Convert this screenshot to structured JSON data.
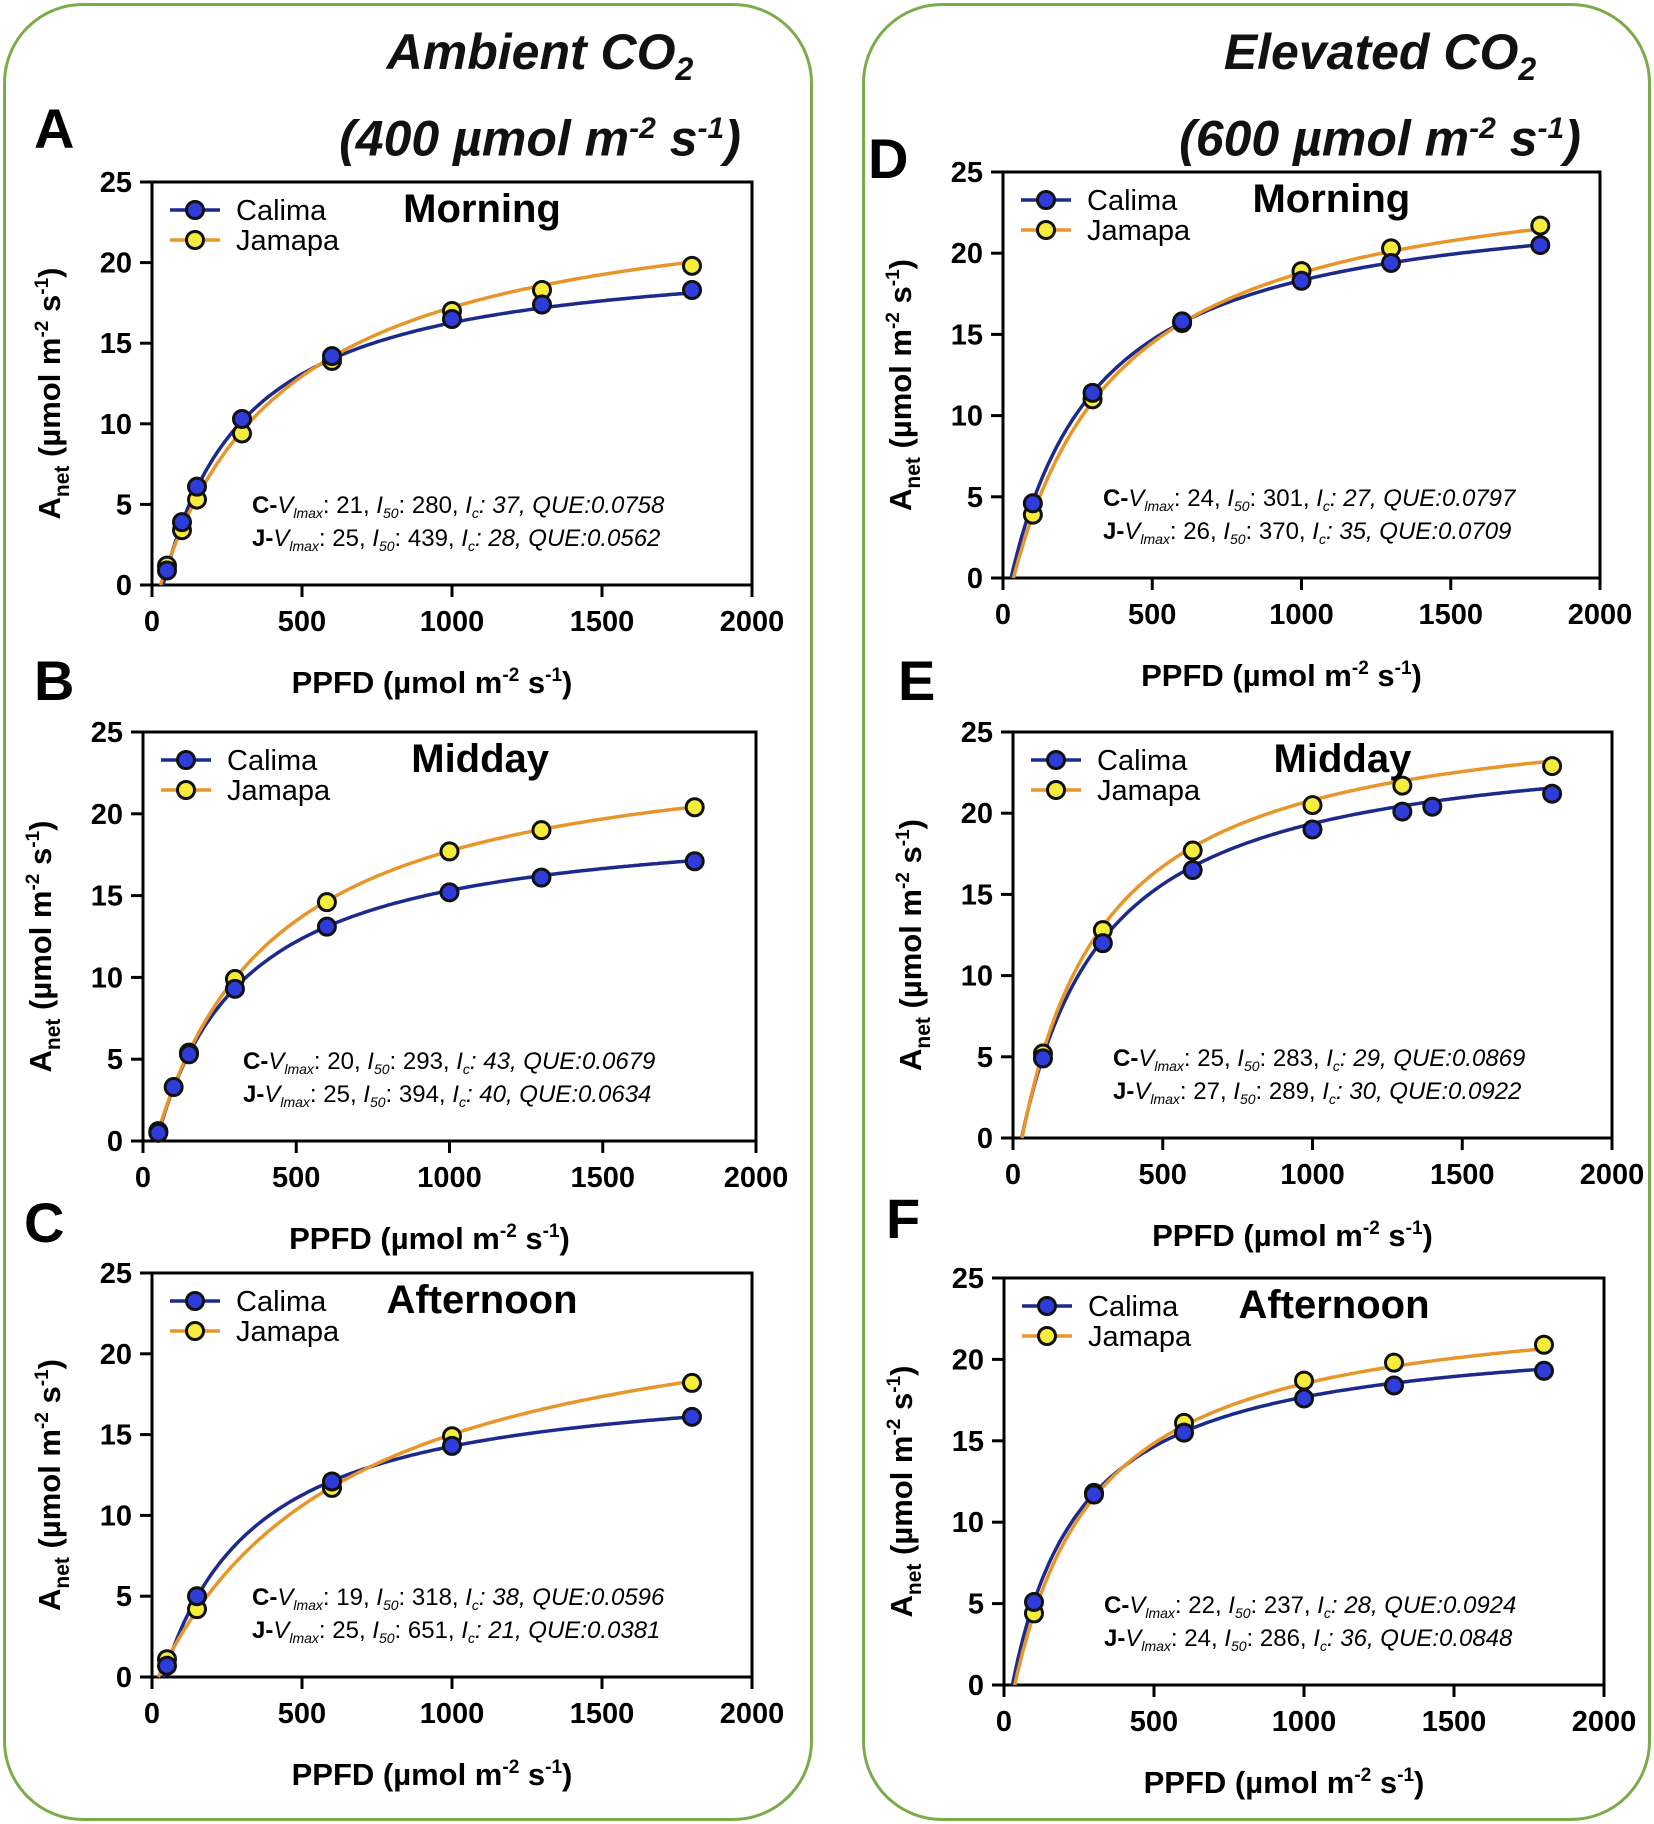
{
  "groups": [
    {
      "label": "Ambient CO",
      "sub": "2",
      "conc": "(400 µmol m",
      "conc_exp1": "-2",
      "conc_mid": " s",
      "conc_exp2": "-1",
      "conc_end": ")"
    },
    {
      "label": "Elevated CO",
      "sub": "2",
      "conc": "(600 µmol m",
      "conc_exp1": "-2",
      "conc_mid": " s",
      "conc_exp2": "-1",
      "conc_end": ")"
    }
  ],
  "colors": {
    "calima_fill": "#2e3dd9",
    "calima_line": "#1c2a8c",
    "jamapa_fill": "#f6ec3c",
    "jamapa_line": "#e8962a",
    "border": "#7bab4a"
  },
  "axis_text": {
    "xlabel": "PPFD (µmol m",
    "xlabel_exp1": "-2",
    "xlabel_mid": " s",
    "xlabel_exp2": "-1",
    "xlabel_end": ")",
    "ylabel_main": "A",
    "ylabel_sub": "net",
    "ylabel_rest": " (µmol m",
    "ylabel_exp1": "-2",
    "ylabel_mid": " s",
    "ylabel_exp2": "-1",
    "ylabel_end": ")"
  },
  "chart_data": [
    {
      "panel": "A",
      "type": "scatter",
      "title": "Morning",
      "xlim": [
        0,
        2000
      ],
      "ylim": [
        0,
        25
      ],
      "xticks": [
        "0",
        "500",
        "1000",
        "1500",
        "2000"
      ],
      "yticks": [
        "0",
        "5",
        "10",
        "15",
        "20",
        "25"
      ],
      "legend": [
        "Calima",
        "Jamapa"
      ],
      "series": [
        {
          "name": "Calima",
          "x": [
            50,
            100,
            150,
            300,
            600,
            1000,
            1300,
            1800
          ],
          "y": [
            0.9,
            3.9,
            6.1,
            10.3,
            14.2,
            16.5,
            17.4,
            18.3
          ],
          "fit": {
            "vmax": 21,
            "i50": 280,
            "ic": 37
          }
        },
        {
          "name": "Jamapa",
          "x": [
            50,
            100,
            150,
            300,
            600,
            1000,
            1300,
            1800
          ],
          "y": [
            1.2,
            3.4,
            5.3,
            9.4,
            13.9,
            17.0,
            18.3,
            19.8
          ],
          "fit": {
            "vmax": 25,
            "i50": 439,
            "ic": 28
          }
        }
      ],
      "annotations": [
        {
          "prefix": "C-",
          "v": "V",
          "vsub": "lmax",
          "v_val": ": 21, ",
          "i": "I",
          "isub": "50",
          "i_val": ": 280, ",
          "c": "I",
          "csub": "c",
          "rest": ": 37, QUE:0.0758"
        },
        {
          "prefix": "J-",
          "v": "V",
          "vsub": "lmax",
          "v_val": ": 25, ",
          "i": "I",
          "isub": "50",
          "i_val": ": 439, ",
          "c": "I",
          "csub": "c",
          "rest": ": 28, QUE:0.0562"
        }
      ]
    },
    {
      "panel": "B",
      "type": "scatter",
      "title": "Midday",
      "xlim": [
        0,
        2000
      ],
      "ylim": [
        0,
        25
      ],
      "xticks": [
        "0",
        "500",
        "1000",
        "1500",
        "2000"
      ],
      "yticks": [
        "0",
        "5",
        "10",
        "15",
        "20",
        "25"
      ],
      "legend": [
        "Calima",
        "Jamapa"
      ],
      "series": [
        {
          "name": "Calima",
          "x": [
            50,
            100,
            150,
            300,
            600,
            1000,
            1300,
            1800
          ],
          "y": [
            0.5,
            3.3,
            5.3,
            9.3,
            13.1,
            15.2,
            16.1,
            17.1
          ],
          "fit": {
            "vmax": 20,
            "i50": 293,
            "ic": 43
          }
        },
        {
          "name": "Jamapa",
          "x": [
            50,
            150,
            300,
            600,
            1000,
            1300,
            1800
          ],
          "y": [
            0.6,
            5.4,
            9.9,
            14.6,
            17.7,
            19.0,
            20.4
          ],
          "fit": {
            "vmax": 25,
            "i50": 394,
            "ic": 40
          }
        }
      ],
      "annotations": [
        {
          "prefix": "C-",
          "v": "V",
          "vsub": "lmax",
          "v_val": ": 20, ",
          "i": "I",
          "isub": "50",
          "i_val": ": 293, ",
          "c": "I",
          "csub": "c",
          "rest": ": 43, QUE:0.0679"
        },
        {
          "prefix": "J-",
          "v": "V",
          "vsub": "lmax",
          "v_val": ": 25, ",
          "i": "I",
          "isub": "50",
          "i_val": ": 394, ",
          "c": "I",
          "csub": "c",
          "rest": ": 40, QUE:0.0634"
        }
      ]
    },
    {
      "panel": "C",
      "type": "scatter",
      "title": "Afternoon",
      "xlim": [
        0,
        2000
      ],
      "ylim": [
        0,
        25
      ],
      "xticks": [
        "0",
        "500",
        "1000",
        "1500",
        "2000"
      ],
      "yticks": [
        "0",
        "5",
        "10",
        "15",
        "20",
        "25"
      ],
      "legend": [
        "Calima",
        "Jamapa"
      ],
      "series": [
        {
          "name": "Calima",
          "x": [
            50,
            150,
            600,
            1000,
            1800
          ],
          "y": [
            0.7,
            5.0,
            12.1,
            14.3,
            16.1
          ],
          "fit": {
            "vmax": 19,
            "i50": 318,
            "ic": 38
          }
        },
        {
          "name": "Jamapa",
          "x": [
            50,
            150,
            600,
            1000,
            1800
          ],
          "y": [
            1.1,
            4.2,
            11.7,
            14.9,
            18.2
          ],
          "fit": {
            "vmax": 25,
            "i50": 651,
            "ic": 21
          }
        }
      ],
      "annotations": [
        {
          "prefix": "C-",
          "v": "V",
          "vsub": "lmax",
          "v_val": ": 19, ",
          "i": "I",
          "isub": "50",
          "i_val": ": 318, ",
          "c": "I",
          "csub": "c",
          "rest": ": 38, QUE:0.0596"
        },
        {
          "prefix": "J-",
          "v": "V",
          "vsub": "lmax",
          "v_val": ": 25, ",
          "i": "I",
          "isub": "50",
          "i_val": ": 651, ",
          "c": "I",
          "csub": "c",
          "rest": ": 21, QUE:0.0381"
        }
      ]
    },
    {
      "panel": "D",
      "type": "scatter",
      "title": "Morning",
      "xlim": [
        0,
        2000
      ],
      "ylim": [
        0,
        25
      ],
      "xticks": [
        "0",
        "500",
        "1000",
        "1500",
        "2000"
      ],
      "yticks": [
        "0",
        "5",
        "10",
        "15",
        "20",
        "25"
      ],
      "legend": [
        "Calima",
        "Jamapa"
      ],
      "series": [
        {
          "name": "Calima",
          "x": [
            100,
            300,
            600,
            1000,
            1300,
            1800
          ],
          "y": [
            4.6,
            11.4,
            15.8,
            18.3,
            19.4,
            20.5
          ],
          "fit": {
            "vmax": 24,
            "i50": 301,
            "ic": 27
          }
        },
        {
          "name": "Jamapa",
          "x": [
            100,
            300,
            600,
            1000,
            1300,
            1800
          ],
          "y": [
            3.9,
            11.0,
            15.7,
            18.9,
            20.3,
            21.7
          ],
          "fit": {
            "vmax": 26,
            "i50": 370,
            "ic": 35
          }
        }
      ],
      "annotations": [
        {
          "prefix": "C-",
          "v": "V",
          "vsub": "lmax",
          "v_val": ": 24, ",
          "i": "I",
          "isub": "50",
          "i_val": ": 301, ",
          "c": "I",
          "csub": "c",
          "rest": ": 27, QUE:0.0797"
        },
        {
          "prefix": "J-",
          "v": "V",
          "vsub": "lmax",
          "v_val": ": 26, ",
          "i": "I",
          "isub": "50",
          "i_val": ": 370, ",
          "c": "I",
          "csub": "c",
          "rest": ": 35, QUE:0.0709"
        }
      ]
    },
    {
      "panel": "E",
      "type": "scatter",
      "title": "Midday",
      "xlim": [
        0,
        2000
      ],
      "ylim": [
        0,
        25
      ],
      "xticks": [
        "0",
        "500",
        "1000",
        "1500",
        "2000"
      ],
      "yticks": [
        "0",
        "5",
        "10",
        "15",
        "20",
        "25"
      ],
      "legend": [
        "Calima",
        "Jamapa"
      ],
      "series": [
        {
          "name": "Calima",
          "x": [
            100,
            300,
            600,
            1000,
            1300,
            1400,
            1800
          ],
          "y": [
            4.9,
            12.0,
            16.5,
            19.0,
            20.1,
            20.4,
            21.2
          ],
          "fit": {
            "vmax": 25,
            "i50": 283,
            "ic": 29
          }
        },
        {
          "name": "Jamapa",
          "x": [
            100,
            300,
            600,
            1000,
            1300,
            1800
          ],
          "y": [
            5.2,
            12.8,
            17.7,
            20.5,
            21.7,
            22.9
          ],
          "fit": {
            "vmax": 27,
            "i50": 289,
            "ic": 30
          }
        }
      ],
      "annotations": [
        {
          "prefix": "C-",
          "v": "V",
          "vsub": "lmax",
          "v_val": ": 25, ",
          "i": "I",
          "isub": "50",
          "i_val": ": 283, ",
          "c": "I",
          "csub": "c",
          "rest": ": 29, QUE:0.0869"
        },
        {
          "prefix": "J-",
          "v": "V",
          "vsub": "lmax",
          "v_val": ": 27, ",
          "i": "I",
          "isub": "50",
          "i_val": ": 289, ",
          "c": "I",
          "csub": "c",
          "rest": ": 30, QUE:0.0922"
        }
      ]
    },
    {
      "panel": "F",
      "type": "scatter",
      "title": "Afternoon",
      "xlim": [
        0,
        2000
      ],
      "ylim": [
        0,
        25
      ],
      "xticks": [
        "0",
        "500",
        "1000",
        "1500",
        "2000"
      ],
      "yticks": [
        "0",
        "5",
        "10",
        "15",
        "20",
        "25"
      ],
      "legend": [
        "Calima",
        "Jamapa"
      ],
      "series": [
        {
          "name": "Calima",
          "x": [
            100,
            300,
            600,
            1000,
            1300,
            1800
          ],
          "y": [
            5.1,
            11.7,
            15.5,
            17.6,
            18.4,
            19.3
          ],
          "fit": {
            "vmax": 22,
            "i50": 237,
            "ic": 28
          }
        },
        {
          "name": "Jamapa",
          "x": [
            100,
            300,
            600,
            1000,
            1300,
            1800
          ],
          "y": [
            4.4,
            11.8,
            16.1,
            18.7,
            19.8,
            20.9
          ],
          "fit": {
            "vmax": 24,
            "i50": 286,
            "ic": 36
          }
        }
      ],
      "annotations": [
        {
          "prefix": "C-",
          "v": "V",
          "vsub": "lmax",
          "v_val": ": 22, ",
          "i": "I",
          "isub": "50",
          "i_val": ": 237, ",
          "c": "I",
          "csub": "c",
          "rest": ": 28, QUE:0.0924"
        },
        {
          "prefix": "J-",
          "v": "V",
          "vsub": "lmax",
          "v_val": ": 24, ",
          "i": "I",
          "isub": "50",
          "i_val": ": 286, ",
          "c": "I",
          "csub": "c",
          "rest": ": 36, QUE:0.0848"
        }
      ]
    }
  ]
}
